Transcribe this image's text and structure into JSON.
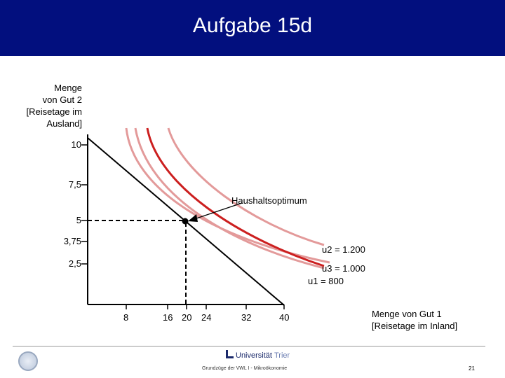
{
  "slide": {
    "title": "Aufgabe 15d",
    "header_color": "#020f7e"
  },
  "diagram": {
    "y_axis_label_lines": [
      "Menge",
      "von Gut 2",
      "[Reisetage im",
      "Ausland]"
    ],
    "x_axis_label_lines": [
      "Menge von Gut 1",
      "[Reisetage im Inland]"
    ],
    "y_ticks": [
      "10",
      "7,5",
      "5",
      "3,75",
      "2,5"
    ],
    "x_ticks": [
      "8",
      "16",
      "20",
      "24",
      "32",
      "40"
    ],
    "annotations": {
      "optimum": "Haushaltsoptimum",
      "u2": "u2 = 1.200",
      "u3": "u3 = 1.000",
      "u1": "u1 = 800"
    },
    "colors": {
      "budget_line": "#000000",
      "optimal_curve": "#cc1f1f",
      "other_curves": "#e39a9a",
      "guide_lines": "#000000"
    }
  },
  "footer": {
    "logo_text": "Universität",
    "logo_city": "Trier",
    "course": "Grundzüge der VWL I - Mikroökonomie",
    "page_number": "21"
  }
}
